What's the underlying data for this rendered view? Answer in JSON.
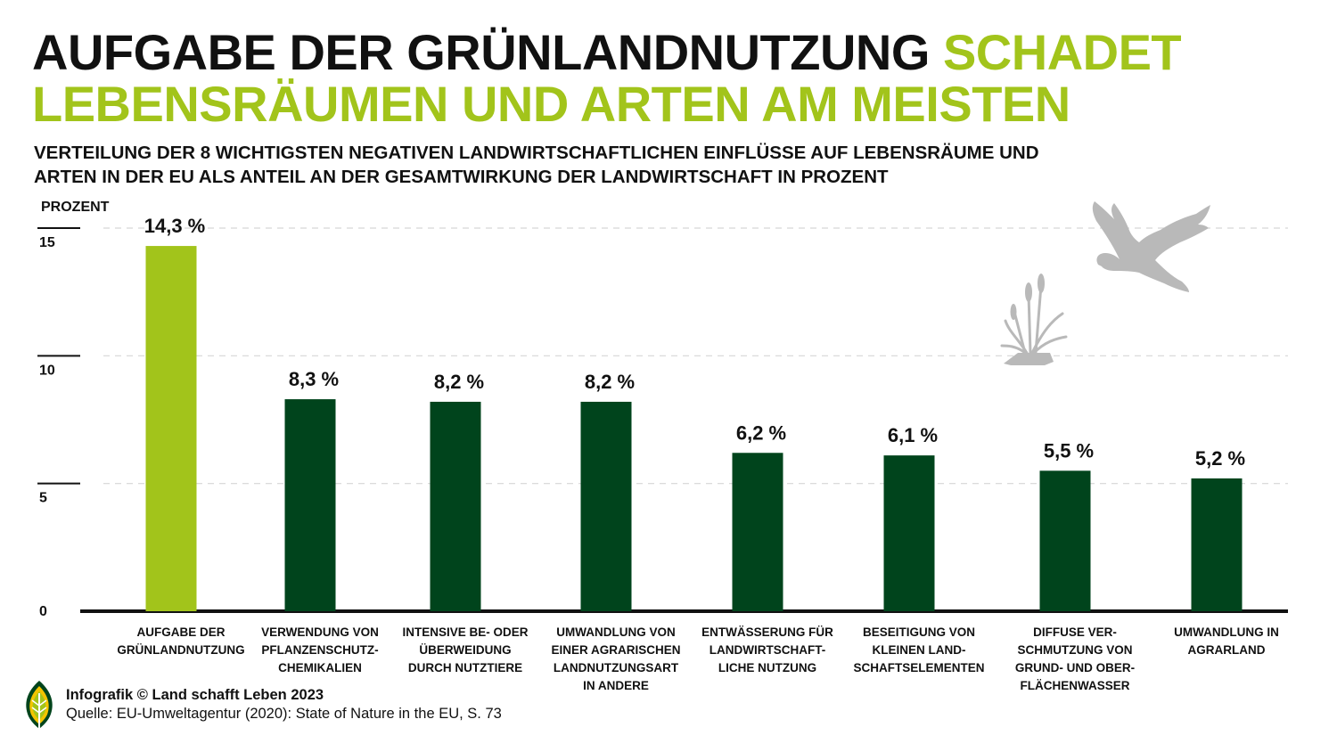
{
  "title": {
    "part1": "AUFGABE DER GRÜNLANDNUTZUNG",
    "part2": "SCHADET",
    "line2": "LEBENSRÄUMEN UND ARTEN AM MEISTEN"
  },
  "subtitle_line1": "VERTEILUNG DER 8 WICHTIGSTEN NEGATIVEN LANDWIRTSCHAFTLICHEN EINFLÜSSE AUF LEBENSRÄUME UND",
  "subtitle_line2": "ARTEN IN DER EU ALS ANTEIL AN DER GESAMTWIRKUNG DER LANDWIRTSCHAFT IN PROZENT",
  "colors": {
    "highlight": "#a2c41b",
    "bar": "#00441c",
    "decoration": "#b9b9b9"
  },
  "footer": {
    "credit": "Infografik © Land schafft Leben 2023",
    "source": "Quelle: EU-Umweltagentur (2020): State of Nature in the EU, S. 73"
  },
  "chart_data": {
    "type": "bar",
    "ylabel": "PROZENT",
    "ylim": [
      0,
      15
    ],
    "yticks": [
      0,
      5,
      10,
      15
    ],
    "grid": true,
    "categories": [
      [
        "AUFGABE DER",
        "GRÜNLANDNUTZUNG"
      ],
      [
        "VERWENDUNG VON",
        "PFLANZENSCHUTZ-",
        "CHEMIKALIEN"
      ],
      [
        "INTENSIVE BE- ODER",
        "ÜBERWEIDUNG",
        "DURCH NUTZTIERE"
      ],
      [
        "UMWANDLUNG VON",
        "EINER AGRARISCHEN",
        "LANDNUTZUNGSART",
        "IN ANDERE"
      ],
      [
        "ENTWÄSSERUNG FÜR",
        "LANDWIRTSCHAFT-",
        "LICHE NUTZUNG"
      ],
      [
        "BESEITIGUNG VON",
        "KLEINEN LAND-",
        "SCHAFTSELEMENTEN"
      ],
      [
        "DIFFUSE VER-",
        "SCHMUTZUNG VON",
        "GRUND- UND OBER-",
        "FLÄCHENWASSER"
      ],
      [
        "UMWANDLUNG IN",
        "AGRARLAND"
      ]
    ],
    "values": [
      14.3,
      8.3,
      8.2,
      8.2,
      6.2,
      6.1,
      5.5,
      5.2
    ],
    "value_labels": [
      "14,3 %",
      "8,3 %",
      "8,2 %",
      "8,2 %",
      "6,2 %",
      "6,1 %",
      "5,5 %",
      "5,2 %"
    ],
    "highlight_index": 0
  }
}
